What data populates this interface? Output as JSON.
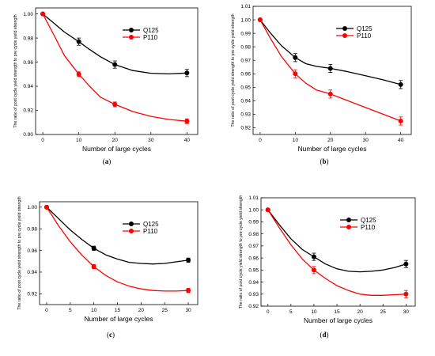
{
  "chart_data": [
    {
      "panel": "(a)",
      "type": "line",
      "xlabel": "Number of large cycles",
      "ylabel": "The ratio of post cycle yield strength to pre cycle yield strength",
      "xlim": [
        -2,
        43
      ],
      "ylim": [
        0.9,
        1.005
      ],
      "xticks": [
        0,
        10,
        20,
        30,
        40
      ],
      "yticks": [
        0.9,
        0.92,
        0.94,
        0.96,
        0.98,
        1.0
      ],
      "ytick_labels": [
        "0.90",
        "0.92",
        "0.94",
        "0.96",
        "0.98",
        "1.00"
      ],
      "legend": "top-right",
      "series": [
        {
          "name": "Q125",
          "color": "#000000",
          "x": [
            0,
            10,
            20,
            40
          ],
          "y": [
            1.0,
            0.977,
            0.958,
            0.951
          ],
          "err": [
            0,
            0.003,
            0.003,
            0.003
          ],
          "curve": [
            [
              0,
              1.0
            ],
            [
              3,
              0.9925
            ],
            [
              6,
              0.985
            ],
            [
              10,
              0.977
            ],
            [
              13,
              0.9705
            ],
            [
              16,
              0.9645
            ],
            [
              20,
              0.958
            ],
            [
              25,
              0.953
            ],
            [
              30,
              0.9508
            ],
            [
              35,
              0.9503
            ],
            [
              40,
              0.951
            ]
          ]
        },
        {
          "name": "P110",
          "color": "#ff0000",
          "x": [
            0,
            10,
            20,
            40
          ],
          "y": [
            1.0,
            0.95,
            0.925,
            0.911
          ],
          "err": [
            0,
            0.002,
            0.002,
            0.002
          ],
          "curve": [
            [
              0,
              1.0
            ],
            [
              3,
              0.983
            ],
            [
              6,
              0.9655
            ],
            [
              10,
              0.95
            ],
            [
              13,
              0.94
            ],
            [
              16,
              0.931
            ],
            [
              20,
              0.925
            ],
            [
              25,
              0.919
            ],
            [
              30,
              0.915
            ],
            [
              35,
              0.9125
            ],
            [
              40,
              0.911
            ]
          ]
        }
      ]
    },
    {
      "panel": "(b)",
      "type": "line",
      "xlabel": "Number of large cycles",
      "ylabel": "The ratio of post cycle yield strength to pre cycle yield strength",
      "xlim": [
        -2,
        43
      ],
      "ylim": [
        0.915,
        1.01
      ],
      "xticks": [
        0,
        10,
        20,
        30,
        40
      ],
      "yticks": [
        0.92,
        0.93,
        0.94,
        0.95,
        0.96,
        0.97,
        0.98,
        0.99,
        1.0,
        1.01
      ],
      "ytick_labels": [
        "0.92",
        "0.93",
        "0.94",
        "0.95",
        "0.96",
        "0.97",
        "0.98",
        "0.99",
        "1.00",
        "1.01"
      ],
      "legend": "top-right",
      "series": [
        {
          "name": "Q125",
          "color": "#000000",
          "x": [
            0,
            10,
            20,
            40
          ],
          "y": [
            1.0,
            0.972,
            0.964,
            0.952
          ],
          "err": [
            0,
            0.003,
            0.003,
            0.003
          ],
          "curve": [
            [
              0,
              1.0
            ],
            [
              3,
              0.99
            ],
            [
              6,
              0.981
            ],
            [
              10,
              0.972
            ],
            [
              13,
              0.9675
            ],
            [
              16,
              0.9655
            ],
            [
              20,
              0.964
            ],
            [
              25,
              0.9615
            ],
            [
              30,
              0.9585
            ],
            [
              35,
              0.9555
            ],
            [
              40,
              0.952
            ]
          ]
        },
        {
          "name": "P110",
          "color": "#ff0000",
          "x": [
            0,
            10,
            20,
            40
          ],
          "y": [
            1.0,
            0.96,
            0.945,
            0.925
          ],
          "err": [
            0,
            0.003,
            0.003,
            0.003
          ],
          "curve": [
            [
              0,
              1.0
            ],
            [
              3,
              0.986
            ],
            [
              6,
              0.973
            ],
            [
              10,
              0.96
            ],
            [
              13,
              0.953
            ],
            [
              16,
              0.948
            ],
            [
              20,
              0.945
            ],
            [
              25,
              0.94
            ],
            [
              30,
              0.935
            ],
            [
              35,
              0.93
            ],
            [
              40,
              0.925
            ]
          ]
        }
      ]
    },
    {
      "panel": "(c)",
      "type": "line",
      "xlabel": "Number of large cycles",
      "ylabel": "The ratio of post cycle yield strength to pre cycle yield strength",
      "xlim": [
        -1.5,
        32
      ],
      "ylim": [
        0.91,
        1.005
      ],
      "xticks": [
        0,
        5,
        10,
        15,
        20,
        25,
        30
      ],
      "yticks": [
        0.92,
        0.94,
        0.96,
        0.98,
        1.0
      ],
      "ytick_labels": [
        "0.92",
        "0.94",
        "0.96",
        "0.98",
        "1.00"
      ],
      "legend": "top-right",
      "series": [
        {
          "name": "Q125",
          "color": "#000000",
          "x": [
            0,
            10,
            30
          ],
          "y": [
            1.0,
            0.962,
            0.951
          ],
          "err": [
            0,
            0.002,
            0.002
          ],
          "curve": [
            [
              0,
              1.0
            ],
            [
              2.5,
              0.9895
            ],
            [
              5,
              0.979
            ],
            [
              7.5,
              0.97
            ],
            [
              10,
              0.962
            ],
            [
              12.5,
              0.956
            ],
            [
              15,
              0.952
            ],
            [
              17.5,
              0.949
            ],
            [
              20,
              0.948
            ],
            [
              22.5,
              0.9475
            ],
            [
              25,
              0.948
            ],
            [
              27.5,
              0.9495
            ],
            [
              30,
              0.951
            ]
          ]
        },
        {
          "name": "P110",
          "color": "#ff0000",
          "x": [
            0,
            10,
            30
          ],
          "y": [
            1.0,
            0.945,
            0.923
          ],
          "err": [
            0,
            0.002,
            0.002
          ],
          "curve": [
            [
              0,
              1.0
            ],
            [
              2.5,
              0.983
            ],
            [
              5,
              0.968
            ],
            [
              7.5,
              0.9555
            ],
            [
              10,
              0.945
            ],
            [
              12.5,
              0.937
            ],
            [
              15,
              0.931
            ],
            [
              17.5,
              0.927
            ],
            [
              20,
              0.9245
            ],
            [
              22.5,
              0.923
            ],
            [
              25,
              0.9225
            ],
            [
              27.5,
              0.9225
            ],
            [
              30,
              0.923
            ]
          ]
        }
      ]
    },
    {
      "panel": "(d)",
      "type": "line",
      "xlabel": "Number of large cycles",
      "ylabel": "The ratio of post cycle yield strength to pre cycle yield strength",
      "xlim": [
        -1.5,
        32
      ],
      "ylim": [
        0.92,
        1.01
      ],
      "xticks": [
        0,
        5,
        10,
        15,
        20,
        25,
        30
      ],
      "yticks": [
        0.92,
        0.93,
        0.94,
        0.95,
        0.96,
        0.97,
        0.98,
        0.99,
        1.0,
        1.01
      ],
      "ytick_labels": [
        "0.92",
        "0.93",
        "0.94",
        "0.95",
        "0.96",
        "0.97",
        "0.98",
        "0.99",
        "1.00",
        "1.01"
      ],
      "legend": "top-right",
      "series": [
        {
          "name": "Q125",
          "color": "#000000",
          "x": [
            0,
            10,
            30
          ],
          "y": [
            1.0,
            0.961,
            0.955
          ],
          "err": [
            0,
            0.003,
            0.003
          ],
          "curve": [
            [
              0,
              1.0
            ],
            [
              2.5,
              0.9875
            ],
            [
              5,
              0.976
            ],
            [
              7.5,
              0.967
            ],
            [
              10,
              0.961
            ],
            [
              12.5,
              0.955
            ],
            [
              15,
              0.951
            ],
            [
              17.5,
              0.949
            ],
            [
              20,
              0.9485
            ],
            [
              22.5,
              0.949
            ],
            [
              25,
              0.95
            ],
            [
              27.5,
              0.952
            ],
            [
              30,
              0.955
            ]
          ]
        },
        {
          "name": "P110",
          "color": "#ff0000",
          "x": [
            0,
            10,
            30
          ],
          "y": [
            1.0,
            0.95,
            0.93
          ],
          "err": [
            0,
            0.003,
            0.003
          ],
          "curve": [
            [
              0,
              1.0
            ],
            [
              2.5,
              0.985
            ],
            [
              5,
              0.971
            ],
            [
              7.5,
              0.959
            ],
            [
              10,
              0.95
            ],
            [
              12.5,
              0.943
            ],
            [
              15,
              0.937
            ],
            [
              17.5,
              0.933
            ],
            [
              20,
              0.93
            ],
            [
              22.5,
              0.929
            ],
            [
              25,
              0.929
            ],
            [
              27.5,
              0.9295
            ],
            [
              30,
              0.93
            ]
          ]
        }
      ]
    }
  ]
}
